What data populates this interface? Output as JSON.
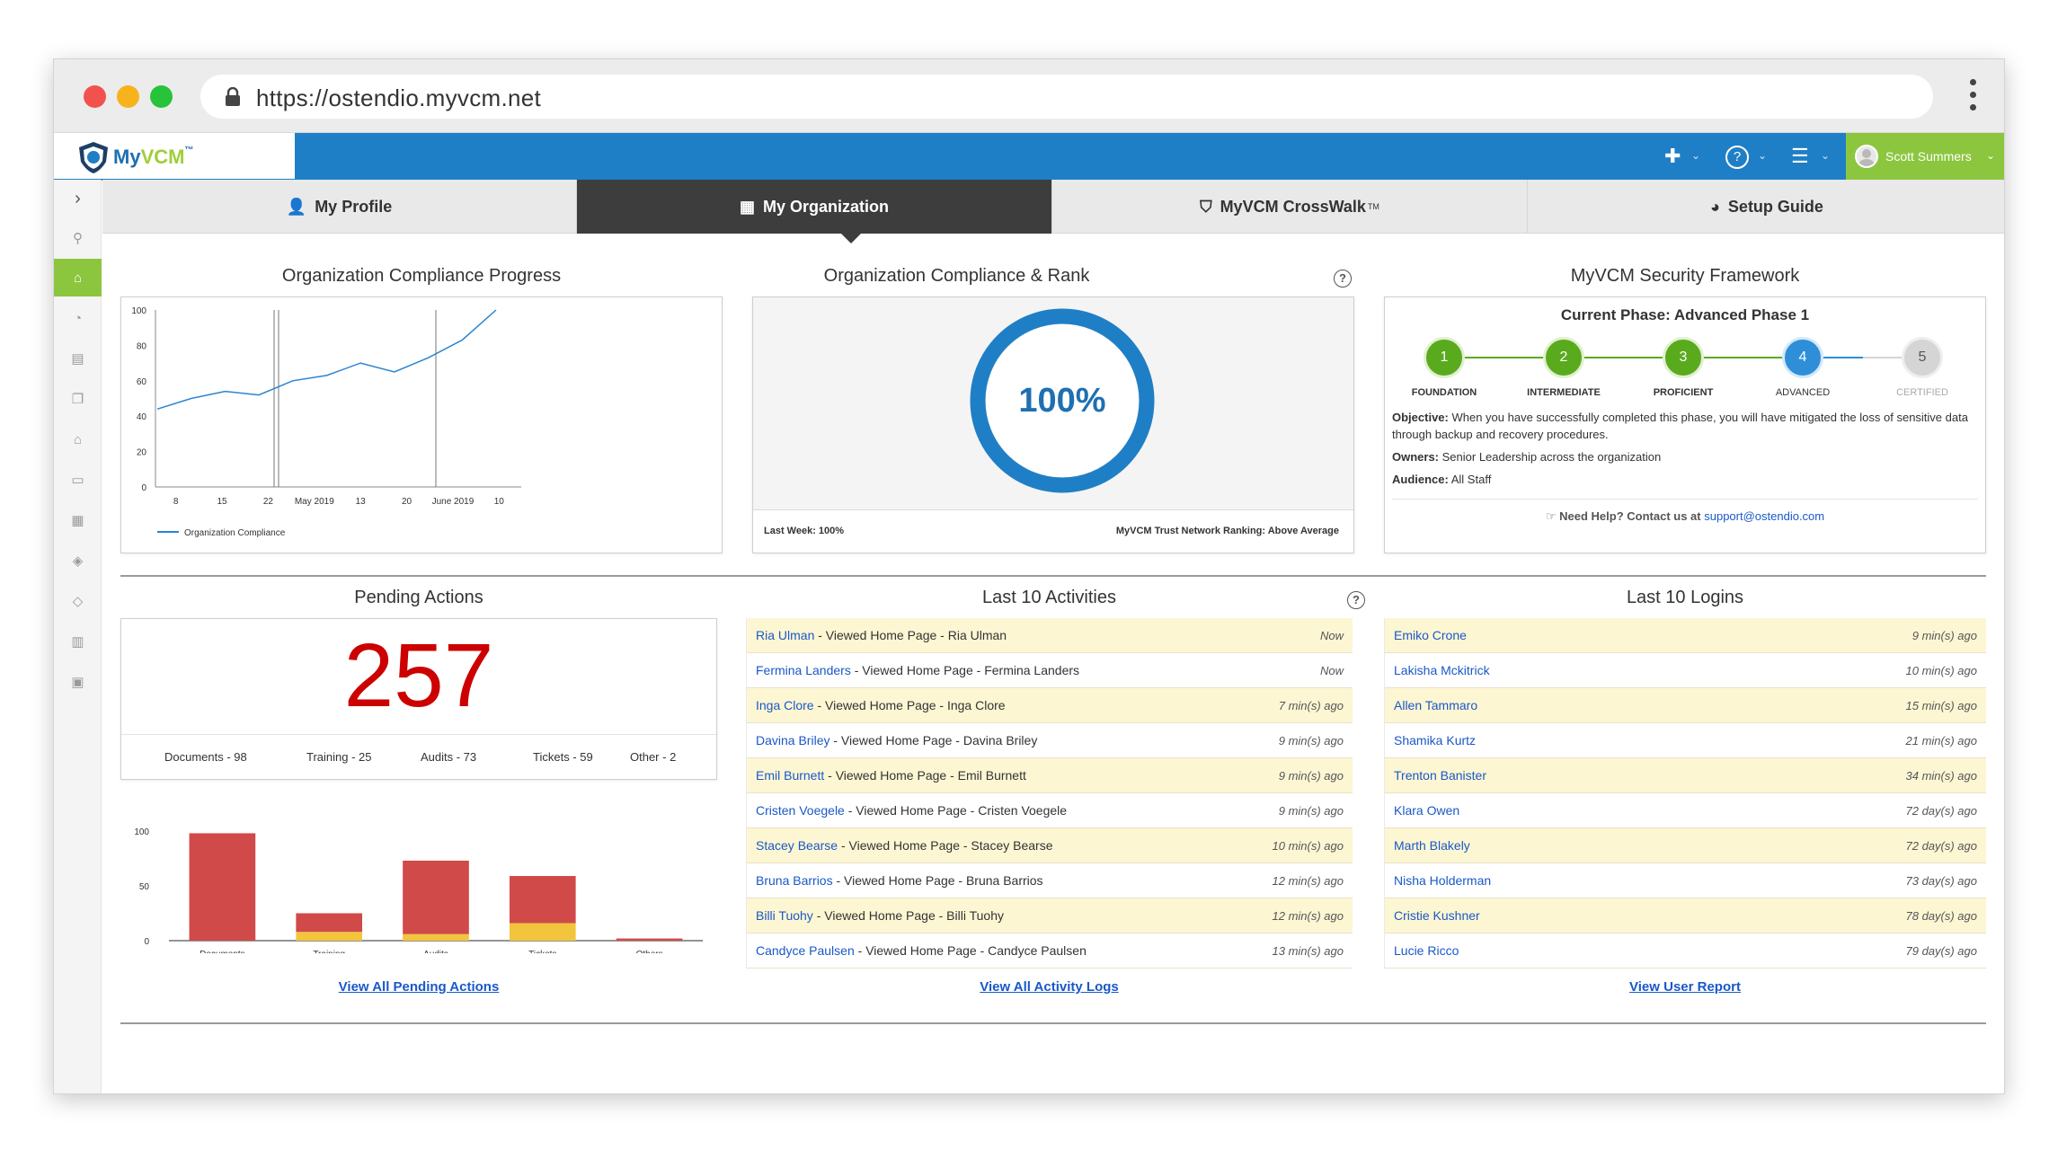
{
  "browser": {
    "url": "https://ostendio.myvcm.net"
  },
  "app": {
    "logo_my": "My",
    "logo_vcm": "VCM",
    "logo_tm": "™",
    "user": "Scott Summers"
  },
  "tabs": [
    {
      "label": "My Profile",
      "icon": "user-icon"
    },
    {
      "label": "My Organization",
      "icon": "building-icon"
    },
    {
      "label": "MyVCM CrossWalk",
      "sup": "TM",
      "icon": "shield-icon"
    },
    {
      "label": "Setup Guide",
      "icon": "pie-icon"
    }
  ],
  "compliance_progress": {
    "title": "Organization Compliance Progress",
    "legend": "Organization Compliance",
    "chart_data": {
      "type": "line",
      "y_ticks": [
        0,
        20,
        40,
        60,
        80,
        100
      ],
      "ylim": [
        0,
        100
      ],
      "x_tick_labels": [
        "8",
        "15",
        "22",
        "May 2019",
        "13",
        "20",
        "June 2019",
        "10"
      ],
      "series": [
        {
          "name": "Organization Compliance",
          "values": [
            44,
            50,
            54,
            52,
            60,
            63,
            70,
            65,
            73,
            83,
            100
          ]
        }
      ]
    }
  },
  "compliance_rank": {
    "title": "Organization Compliance & Rank",
    "percent": "100%",
    "last_week": "Last Week: 100%",
    "ranking": "MyVCM Trust Network Ranking: Above Average"
  },
  "framework": {
    "title": "MyVCM Security Framework",
    "current_phase": "Current Phase: Advanced Phase 1",
    "steps": [
      {
        "n": "1",
        "label": "FOUNDATION",
        "color": "#5aaa1e"
      },
      {
        "n": "2",
        "label": "INTERMEDIATE",
        "color": "#5aaa1e"
      },
      {
        "n": "3",
        "label": "PROFICIENT",
        "color": "#5aaa1e"
      },
      {
        "n": "4",
        "label": "ADVANCED",
        "color": "#2e8fd8"
      },
      {
        "n": "5",
        "label": "CERTIFIED",
        "color": "#d5d5d5"
      }
    ],
    "objective_label": "Objective:",
    "objective": "When you have successfully completed this phase, you will have mitigated the loss of sensitive data through backup and recovery procedures.",
    "owners_label": "Owners:",
    "owners": "Senior Leadership across the organization",
    "audience_label": "Audience:",
    "audience": "All Staff",
    "help_text": "Need Help? Contact us at",
    "help_email": "support@ostendio.com"
  },
  "pending": {
    "title": "Pending Actions",
    "total": "257",
    "categories": [
      "Documents - 98",
      "Training - 25",
      "Audits - 73",
      "Tickets - 59",
      "Other - 2"
    ],
    "chart_data": {
      "type": "bar",
      "stacked": true,
      "categories": [
        "Documents",
        "Training",
        "Audits",
        "Tickets",
        "Others"
      ],
      "y_ticks": [
        0,
        50,
        100
      ],
      "ylim": [
        0,
        100
      ],
      "series": [
        {
          "values": [
            98,
            17,
            67,
            43,
            2
          ],
          "color": "#d04a49"
        },
        {
          "values": [
            0,
            8,
            6,
            16,
            0
          ],
          "color": "#f2c53d"
        }
      ]
    },
    "link": "View All Pending Actions"
  },
  "activities": {
    "title": "Last 10 Activities",
    "rows": [
      {
        "name": "Ria Ulman",
        "action": " - Viewed Home Page - Ria Ulman",
        "time": "Now"
      },
      {
        "name": "Fermina Landers",
        "action": " - Viewed Home Page - Fermina Landers",
        "time": "Now"
      },
      {
        "name": "Inga Clore",
        "action": " - Viewed Home Page - Inga Clore",
        "time": "7 min(s) ago"
      },
      {
        "name": "Davina Briley",
        "action": " - Viewed Home Page - Davina Briley",
        "time": "9 min(s) ago"
      },
      {
        "name": "Emil Burnett",
        "action": " - Viewed Home Page - Emil Burnett",
        "time": "9 min(s) ago"
      },
      {
        "name": "Cristen Voegele",
        "action": " - Viewed Home Page - Cristen Voegele",
        "time": "9 min(s) ago"
      },
      {
        "name": "Stacey Bearse",
        "action": " - Viewed Home Page - Stacey Bearse",
        "time": "10 min(s) ago"
      },
      {
        "name": "Bruna Barrios",
        "action": " - Viewed Home Page - Bruna Barrios",
        "time": "12 min(s) ago"
      },
      {
        "name": "Billi Tuohy",
        "action": " - Viewed Home Page - Billi Tuohy",
        "time": "12 min(s) ago"
      },
      {
        "name": "Candyce Paulsen",
        "action": " - Viewed Home Page - Candyce Paulsen",
        "time": "13 min(s) ago"
      }
    ],
    "link": "View All Activity Logs"
  },
  "logins": {
    "title": "Last 10 Logins",
    "rows": [
      {
        "name": "Emiko Crone",
        "time": "9 min(s) ago"
      },
      {
        "name": "Lakisha Mckitrick",
        "time": "10 min(s) ago"
      },
      {
        "name": "Allen Tammaro",
        "time": "15 min(s) ago"
      },
      {
        "name": "Shamika Kurtz",
        "time": "21 min(s) ago"
      },
      {
        "name": "Trenton Banister",
        "time": "34 min(s) ago"
      },
      {
        "name": "Klara Owen",
        "time": "72 day(s) ago"
      },
      {
        "name": "Marth Blakely",
        "time": "72 day(s) ago"
      },
      {
        "name": "Nisha Holderman",
        "time": "73 day(s) ago"
      },
      {
        "name": "Cristie Kushner",
        "time": "78 day(s) ago"
      },
      {
        "name": "Lucie Ricco",
        "time": "79 day(s) ago"
      }
    ],
    "link": "View User Report"
  }
}
